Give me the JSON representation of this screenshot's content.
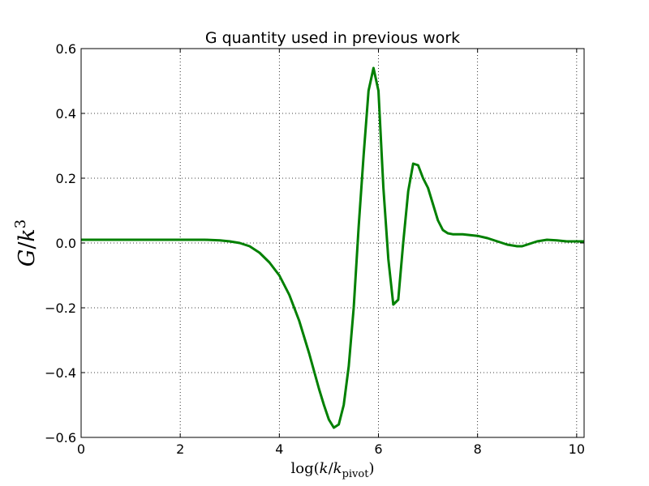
{
  "chart_data": {
    "type": "line",
    "title": "G quantity used in previous work",
    "xlabel": {
      "prefix": "log(",
      "var": "k",
      "slash": "/",
      "var2": "k",
      "subscript": "pivot",
      "suffix": ")"
    },
    "ylabel": {
      "var": "G",
      "slash": "/",
      "var2": "k",
      "superscript": "3"
    },
    "xlim": [
      0,
      10.15
    ],
    "ylim": [
      -0.6,
      0.6
    ],
    "xticks": [
      0,
      2,
      4,
      6,
      8,
      10
    ],
    "xtick_labels": [
      "0",
      "2",
      "4",
      "6",
      "8",
      "10"
    ],
    "yticks": [
      -0.6,
      -0.4,
      -0.2,
      0.0,
      0.2,
      0.4,
      0.6
    ],
    "ytick_labels": [
      "−0.6",
      "−0.4",
      "−0.2",
      "0.0",
      "0.2",
      "0.4",
      "0.6"
    ],
    "grid": true,
    "series": [
      {
        "color": "#008000",
        "x": [
          0,
          0.5,
          1.0,
          1.5,
          2.0,
          2.5,
          2.8,
          3.0,
          3.2,
          3.4,
          3.6,
          3.8,
          4.0,
          4.2,
          4.4,
          4.6,
          4.8,
          4.9,
          5.0,
          5.1,
          5.2,
          5.3,
          5.4,
          5.5,
          5.6,
          5.7,
          5.8,
          5.9,
          6.0,
          6.1,
          6.2,
          6.3,
          6.4,
          6.5,
          6.6,
          6.7,
          6.8,
          6.9,
          7.0,
          7.1,
          7.2,
          7.3,
          7.4,
          7.5,
          7.7,
          8.0,
          8.2,
          8.4,
          8.6,
          8.8,
          8.9,
          9.0,
          9.2,
          9.4,
          9.6,
          9.8,
          10.0,
          10.15
        ],
        "y": [
          0.01,
          0.01,
          0.01,
          0.01,
          0.01,
          0.01,
          0.008,
          0.005,
          0.0,
          -0.01,
          -0.03,
          -0.06,
          -0.1,
          -0.16,
          -0.24,
          -0.34,
          -0.45,
          -0.5,
          -0.545,
          -0.57,
          -0.56,
          -0.5,
          -0.38,
          -0.2,
          0.05,
          0.27,
          0.47,
          0.54,
          0.47,
          0.17,
          -0.05,
          -0.19,
          -0.175,
          0.0,
          0.16,
          0.245,
          0.24,
          0.2,
          0.17,
          0.12,
          0.07,
          0.04,
          0.03,
          0.027,
          0.027,
          0.022,
          0.015,
          0.005,
          -0.005,
          -0.01,
          -0.01,
          -0.005,
          0.005,
          0.01,
          0.008,
          0.005,
          0.005,
          0.005
        ]
      }
    ]
  }
}
